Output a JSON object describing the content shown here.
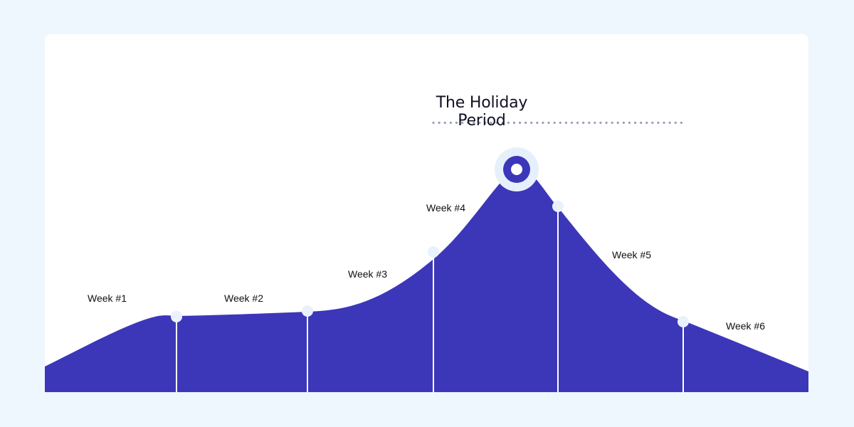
{
  "title": "The Holiday Period",
  "weeks": [
    {
      "label": "Week #1"
    },
    {
      "label": "Week #2"
    },
    {
      "label": "Week #3"
    },
    {
      "label": "Week #4"
    },
    {
      "label": "Week #5"
    },
    {
      "label": "Week #6"
    }
  ],
  "colors": {
    "page_background": "#eef6fe",
    "card_background": "#ffffff",
    "area_fill": "#3c37b9",
    "marker_fill": "#e9f1fd",
    "divider_line": "#ffffff",
    "dotted_line": "#9aa3b9",
    "peak_ring_outer": "#e6f0fd",
    "peak_ring_inner": "#3c37b9"
  }
}
